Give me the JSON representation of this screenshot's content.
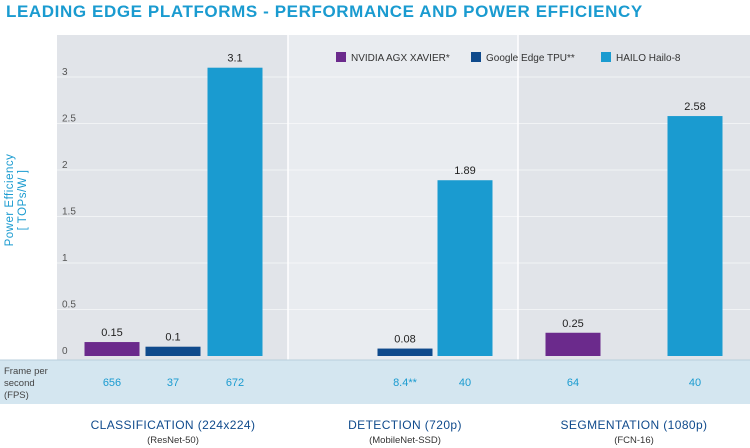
{
  "title": "LEADING EDGE PLATFORMS - PERFORMANCE AND POWER EFFICIENCY",
  "colors": {
    "title": "#1a9bd0",
    "ylabel": "#1a9bd0",
    "nvidia": "#6b2a8c",
    "google": "#0f4a8c",
    "hailo": "#1a9bd0",
    "fps_text": "#1a9bd0",
    "panel_bg": "#e4e7ec",
    "fps_band": "#cfe3ee"
  },
  "chart_data": {
    "type": "bar",
    "ylabel": "Power Efficiency\n[ TOPs/W ]",
    "ylim": [
      0,
      3.2
    ],
    "yticks": [
      "0",
      "0.5",
      "1",
      "1.5",
      "2",
      "2.5",
      "3"
    ],
    "legend_position": "top-right",
    "series": [
      {
        "name": "NVIDIA AGX XAVIER*",
        "color": "#6b2a8c"
      },
      {
        "name": "Google Edge TPU**",
        "color": "#0f4a8c"
      },
      {
        "name": "HAILO Hailo-8",
        "color": "#1a9bd0"
      }
    ],
    "groups": [
      {
        "label": "CLASSIFICATION (224x224)",
        "sublabel": "(ResNet-50)",
        "bars": [
          {
            "series": 0,
            "value": 0.15,
            "label": "0.15",
            "fps": "656"
          },
          {
            "series": 1,
            "value": 0.1,
            "label": "0.1",
            "fps": "37"
          },
          {
            "series": 2,
            "value": 3.1,
            "label": "3.1",
            "fps": "672"
          }
        ]
      },
      {
        "label": "DETECTION (720p)",
        "sublabel": "(MobileNet-SSD)",
        "bars": [
          {
            "series": 1,
            "value": 0.08,
            "label": "0.08",
            "fps": "8.4**"
          },
          {
            "series": 2,
            "value": 1.89,
            "label": "1.89",
            "fps": "40"
          }
        ]
      },
      {
        "label": "SEGMENTATION (1080p)",
        "sublabel": "(FCN-16)",
        "bars": [
          {
            "series": 0,
            "value": 0.25,
            "label": "0.25",
            "fps": "64"
          },
          {
            "series": 2,
            "value": 2.58,
            "label": "2.58",
            "fps": "40"
          }
        ]
      }
    ],
    "fps_row_label": "Frame per\nsecond\n(FPS)"
  }
}
